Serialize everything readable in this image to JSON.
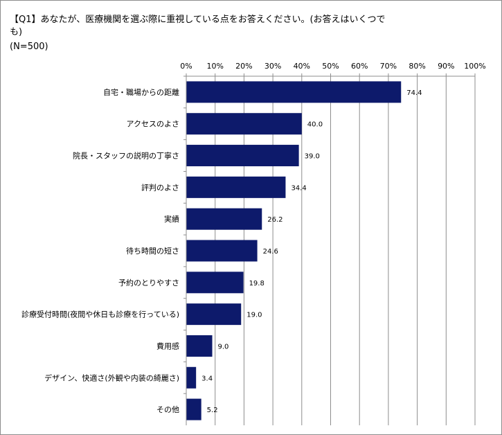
{
  "title_line1": "【Q1】あなたが、医療機関を選ぶ際に重視している点をお答えください。(お答えはいくつで",
  "title_line2": "も)",
  "sample_size": "(N=500)",
  "chart_data": {
    "type": "bar",
    "orientation": "horizontal",
    "categories": [
      "自宅・職場からの距離",
      "アクセスのよさ",
      "院長・スタッフの説明の丁寧さ",
      "評判のよさ",
      "実績",
      "待ち時間の短さ",
      "予約のとりやすさ",
      "診療受付時間(夜間や休日も診療を行っている)",
      "費用感",
      "デザイン、快適さ(外観や内装の綺麗さ)",
      "その他"
    ],
    "values": [
      74.4,
      40.0,
      39.0,
      34.4,
      26.2,
      24.6,
      19.8,
      19.0,
      9.0,
      3.4,
      5.2
    ],
    "value_labels": [
      "74.4",
      "40.0",
      "39.0",
      "34.4",
      "26.2",
      "24.6",
      "19.8",
      "19.0",
      "9.0",
      "3.4",
      "5.2"
    ],
    "xlim": [
      0,
      100
    ],
    "tick_labels": [
      "0%",
      "10%",
      "20%",
      "30%",
      "40%",
      "50%",
      "60%",
      "70%",
      "80%",
      "90%",
      "100%"
    ],
    "axis_position": "top",
    "grid": true,
    "bar_color": "#0d1a6b"
  }
}
